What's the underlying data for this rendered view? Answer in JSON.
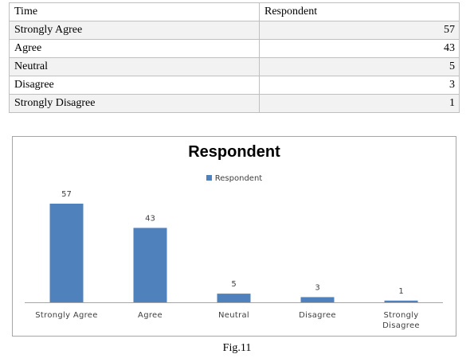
{
  "table": {
    "headers": [
      "Time",
      "Respondent"
    ],
    "rows": [
      {
        "label": "Strongly Agree",
        "value": "57"
      },
      {
        "label": "Agree",
        "value": "43"
      },
      {
        "label": "Neutral",
        "value": "5"
      },
      {
        "label": "Disagree",
        "value": "3"
      },
      {
        "label": "Strongly Disagree",
        "value": "1"
      }
    ]
  },
  "chart_data": {
    "type": "bar",
    "title": "Respondent",
    "categories": [
      "Strongly Agree",
      "Agree",
      "Neutral",
      "Disagree",
      "Strongly Disagree"
    ],
    "series": [
      {
        "name": "Respondent",
        "values": [
          57,
          43,
          5,
          3,
          1
        ]
      }
    ],
    "ylim": [
      0,
      57
    ],
    "grid": false,
    "legend": "top-center",
    "data_labels": true,
    "bar_color": "#4f81bd"
  },
  "caption": "Fig.11"
}
